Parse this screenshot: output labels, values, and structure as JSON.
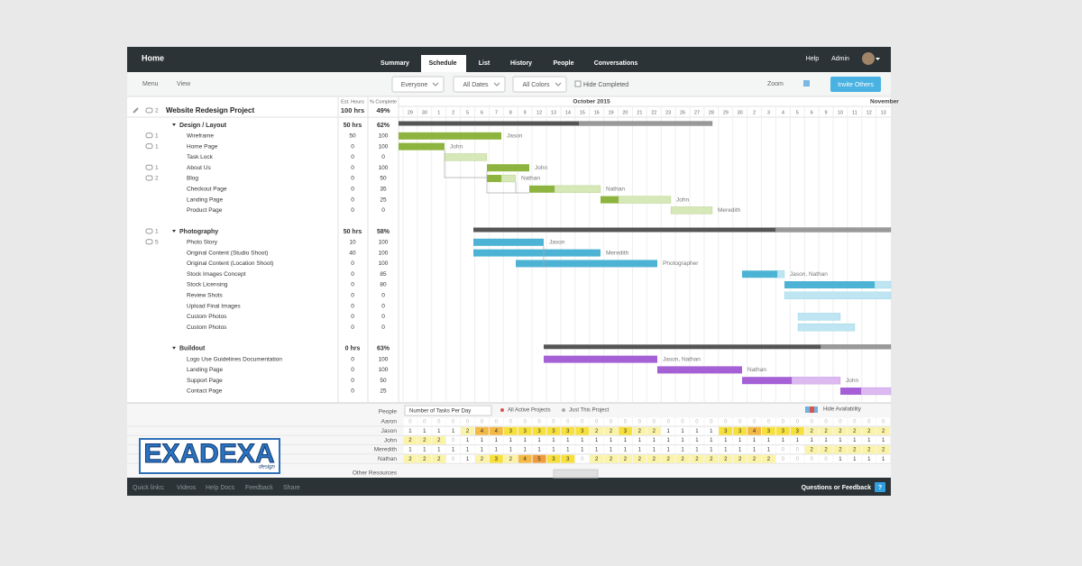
{
  "nav": {
    "home": "Home",
    "tabs": [
      "Summary",
      "Schedule",
      "List",
      "History",
      "People",
      "Conversations"
    ],
    "active_tab": 1,
    "help": "Help",
    "admin": "Admin"
  },
  "toolbar": {
    "menu": "Menu",
    "view": "View",
    "filters": [
      "Everyone",
      "All Dates",
      "All Colors"
    ],
    "hide_completed": "Hide Completed",
    "zoom": "Zoom",
    "invite": "Invite Others"
  },
  "columns": {
    "hours": "Est. Hours",
    "complete": "% Complete"
  },
  "timeline": {
    "months": [
      "October 2015",
      "November"
    ],
    "days": [
      "29",
      "30",
      "1",
      "2",
      "5",
      "6",
      "7",
      "8",
      "9",
      "12",
      "13",
      "14",
      "15",
      "16",
      "19",
      "20",
      "21",
      "22",
      "23",
      "26",
      "27",
      "28",
      "29",
      "30",
      "2",
      "3",
      "4",
      "5",
      "6",
      "9",
      "10",
      "11",
      "12",
      "13"
    ]
  },
  "project": {
    "name": "Website Redesign Project",
    "hours": "100 hrs",
    "complete": "49%",
    "comments": "2"
  },
  "sections": [
    {
      "name": "Design / Layout",
      "hours": "50 hrs",
      "complete": "62%",
      "color": "#8db43f",
      "light": "#d6e7b8",
      "tasks": [
        {
          "name": "Wireframe",
          "hours": "50",
          "complete": "100",
          "comments": "1",
          "assignee": "Jason"
        },
        {
          "name": "Home Page",
          "hours": "0",
          "complete": "100",
          "comments": "1",
          "assignee": "John"
        },
        {
          "name": "Task Lock",
          "hours": "0",
          "complete": "0"
        },
        {
          "name": "About Us",
          "hours": "0",
          "complete": "100",
          "comments": "1",
          "assignee": "John"
        },
        {
          "name": "Blog",
          "hours": "0",
          "complete": "50",
          "comments": "2",
          "assignee": "Nathan"
        },
        {
          "name": "Checkout Page",
          "hours": "0",
          "complete": "35",
          "assignee": "Nathan"
        },
        {
          "name": "Landing Page",
          "hours": "0",
          "complete": "25",
          "assignee": "John"
        },
        {
          "name": "Product Page",
          "hours": "0",
          "complete": "0",
          "assignee": "Meredith"
        }
      ]
    },
    {
      "name": "Photography",
      "hours": "50 hrs",
      "complete": "58%",
      "comments": "1",
      "color": "#4db3d4",
      "light": "#bfe5f2",
      "tasks": [
        {
          "name": "Photo Story",
          "hours": "10",
          "complete": "100",
          "comments": "5",
          "assignee": "Jason"
        },
        {
          "name": "Original Content (Studio Shoot)",
          "hours": "40",
          "complete": "100",
          "assignee": "Meredith"
        },
        {
          "name": "Original Content (Location Shoot)",
          "hours": "0",
          "complete": "100",
          "assignee": "Photographer"
        },
        {
          "name": "Stock Images Concept",
          "hours": "0",
          "complete": "85",
          "assignee": "Jason, Nathan"
        },
        {
          "name": "Stock Licensing",
          "hours": "0",
          "complete": "80"
        },
        {
          "name": "Review Shots",
          "hours": "0",
          "complete": "0"
        },
        {
          "name": "Upload Final Images",
          "hours": "0",
          "complete": "0"
        },
        {
          "name": "Custom Photos",
          "hours": "0",
          "complete": "0"
        },
        {
          "name": "Custom Photos",
          "hours": "0",
          "complete": "0"
        }
      ]
    },
    {
      "name": "Buildout",
      "hours": "0 hrs",
      "complete": "63%",
      "color": "#a560d6",
      "light": "#dcbaf0",
      "tasks": [
        {
          "name": "Logo Use Guidelines Documentation",
          "hours": "0",
          "complete": "100",
          "assignee": "Jason, Nathan"
        },
        {
          "name": "Landing Page",
          "hours": "0",
          "complete": "100",
          "assignee": "Nathan"
        },
        {
          "name": "Support Page",
          "hours": "0",
          "complete": "50",
          "assignee": "John"
        },
        {
          "name": "Contact Page",
          "hours": "0",
          "complete": "25"
        }
      ]
    }
  ],
  "resources": {
    "people_label": "People",
    "metric": "Number of Tasks Per Day",
    "all_projects": "All Active Projects",
    "this_project": "Just This Project",
    "hide_availability": "Hide Availability",
    "other": "Other Resources",
    "heat_colors": [
      "#ffffff",
      "#ffffff",
      "#fbf3a8",
      "#f8e03c",
      "#f4b945",
      "#ef9b3b"
    ],
    "people": [
      {
        "name": "Aaron",
        "counts": [
          0,
          0,
          0,
          0,
          0,
          0,
          0,
          0,
          0,
          0,
          0,
          0,
          0,
          0,
          0,
          0,
          0,
          0,
          0,
          0,
          0,
          0,
          0,
          0,
          0,
          0,
          0,
          0,
          0,
          0,
          0,
          0,
          0,
          0
        ]
      },
      {
        "name": "Jason",
        "counts": [
          1,
          1,
          1,
          1,
          2,
          4,
          4,
          3,
          3,
          3,
          3,
          3,
          3,
          2,
          2,
          3,
          2,
          2,
          1,
          1,
          1,
          1,
          3,
          3,
          4,
          3,
          3,
          3,
          2,
          2,
          2,
          2,
          2,
          2
        ]
      },
      {
        "name": "John",
        "counts": [
          2,
          2,
          2,
          0,
          1,
          1,
          1,
          1,
          1,
          1,
          1,
          1,
          1,
          1,
          1,
          1,
          1,
          1,
          1,
          1,
          1,
          1,
          1,
          1,
          1,
          1,
          1,
          1,
          1,
          1,
          1,
          1,
          1,
          1
        ]
      },
      {
        "name": "Meredith",
        "counts": [
          1,
          1,
          1,
          1,
          1,
          1,
          1,
          1,
          1,
          1,
          1,
          1,
          1,
          1,
          1,
          1,
          1,
          1,
          1,
          1,
          1,
          1,
          1,
          1,
          1,
          1,
          0,
          0,
          2,
          2,
          2,
          2,
          2,
          2
        ]
      },
      {
        "name": "Nathan",
        "counts": [
          2,
          2,
          2,
          0,
          1,
          2,
          3,
          2,
          4,
          5,
          3,
          3,
          0,
          2,
          2,
          2,
          2,
          2,
          2,
          2,
          2,
          2,
          2,
          2,
          2,
          2,
          0,
          0,
          0,
          0,
          1,
          1,
          1,
          1
        ]
      }
    ]
  },
  "footer": {
    "quick": "Quick links:",
    "links": [
      "Videos",
      "Help Docs",
      "Feedback",
      "Share"
    ],
    "feedback": "Questions or Feedback",
    "help_icon": "?"
  },
  "logo": {
    "text": "EXADEXA",
    "sub": "design"
  }
}
